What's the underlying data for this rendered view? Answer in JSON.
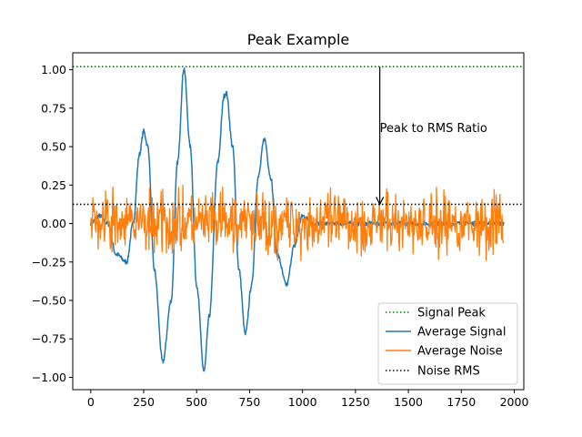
{
  "chart_data": {
    "type": "line",
    "title": "Peak Example",
    "xlabel": "",
    "ylabel": "",
    "xlim": [
      -85,
      2045
    ],
    "ylim": [
      -1.08,
      1.11
    ],
    "x_ticks": [
      0,
      250,
      500,
      750,
      1000,
      1250,
      1500,
      1750,
      2000
    ],
    "x_tick_labels": [
      "0",
      "250",
      "500",
      "750",
      "1000",
      "1250",
      "1500",
      "1750",
      "2000"
    ],
    "y_ticks": [
      1.0,
      0.75,
      0.5,
      0.25,
      0.0,
      -0.25,
      -0.5,
      -0.75,
      -1.0
    ],
    "y_tick_labels": [
      "1.00",
      "0.75",
      "0.50",
      "0.25",
      "0.00",
      "−0.25",
      "−0.50",
      "−0.75",
      "−1.00"
    ],
    "grid": false,
    "legend_position": "lower-right",
    "colors": {
      "signal": "#1f77b4",
      "noise": "#ff7f0e",
      "peak": "#008000",
      "rms": "#000000"
    },
    "series": [
      {
        "name": "Signal Peak",
        "style": "dotted",
        "color": "#008000",
        "y_constant": 1.02
      },
      {
        "name": "Average Signal",
        "style": "solid",
        "color": "#1f77b4",
        "x": [
          0,
          40,
          80,
          120,
          170,
          200,
          230,
          250,
          270,
          300,
          340,
          380,
          410,
          440,
          470,
          500,
          535,
          560,
          600,
          630,
          640,
          670,
          700,
          730,
          760,
          790,
          820,
          850,
          880,
          925,
          960,
          1000,
          1050,
          1100,
          1200,
          1300,
          1400,
          1500,
          1600,
          1700,
          1800,
          1900,
          1950
        ],
        "y": [
          0.0,
          0.05,
          0.0,
          -0.2,
          -0.25,
          0.0,
          0.45,
          0.6,
          0.5,
          -0.3,
          -0.9,
          -0.5,
          0.4,
          1.01,
          0.5,
          -0.4,
          -0.96,
          -0.6,
          0.4,
          0.83,
          0.85,
          0.5,
          -0.3,
          -0.72,
          -0.4,
          0.3,
          0.55,
          0.3,
          -0.2,
          -0.4,
          -0.15,
          0.05,
          0.0,
          0.0,
          0.0,
          0.0,
          0.0,
          0.0,
          0.0,
          0.0,
          0.0,
          0.0,
          0.0
        ]
      },
      {
        "name": "Average Noise",
        "style": "solid",
        "color": "#ff7f0e",
        "x_range": [
          0,
          1950
        ],
        "y_range": [
          -0.34,
          0.36
        ]
      },
      {
        "name": "Noise RMS",
        "style": "dotted",
        "color": "#000000",
        "y_constant": 0.125
      }
    ],
    "annotations": [
      {
        "text": "Peak to RMS Ratio",
        "x": 1365,
        "y_from": 1.02,
        "y_to": 0.125
      }
    ]
  }
}
